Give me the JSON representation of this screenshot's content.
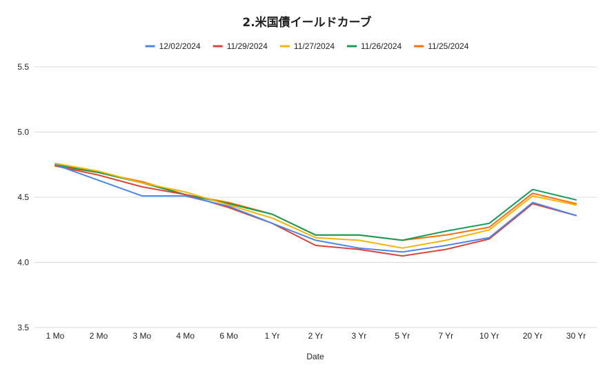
{
  "chart_data": {
    "type": "line",
    "title": "2.米国債イールドカーブ",
    "xlabel": "Date",
    "ylabel": "",
    "categories": [
      "1 Mo",
      "2 Mo",
      "3 Mo",
      "4 Mo",
      "6 Mo",
      "1 Yr",
      "2 Yr",
      "3 Yr",
      "5 Yr",
      "7 Yr",
      "10 Yr",
      "20 Yr",
      "30 Yr"
    ],
    "ylim": [
      3.5,
      5.5
    ],
    "yticks": [
      "3.5",
      "4.0",
      "4.5",
      "5.0",
      "5.5"
    ],
    "grid": true,
    "legend_position": "top",
    "series": [
      {
        "name": "12/02/2024",
        "color": "#4a86e8",
        "values": [
          4.75,
          4.63,
          4.51,
          4.51,
          4.43,
          4.3,
          4.17,
          4.11,
          4.08,
          4.13,
          4.19,
          4.46,
          4.36
        ]
      },
      {
        "name": "11/29/2024",
        "color": "#db4437",
        "values": [
          4.74,
          4.67,
          4.58,
          4.52,
          4.42,
          4.3,
          4.13,
          4.1,
          4.05,
          4.1,
          4.18,
          4.45,
          4.36
        ]
      },
      {
        "name": "11/27/2024",
        "color": "#f4b400",
        "values": [
          4.76,
          4.7,
          4.61,
          4.54,
          4.44,
          4.34,
          4.19,
          4.17,
          4.11,
          4.17,
          4.25,
          4.51,
          4.44
        ]
      },
      {
        "name": "11/26/2024",
        "color": "#0f9d58",
        "values": [
          4.75,
          4.69,
          4.61,
          4.52,
          4.45,
          4.37,
          4.21,
          4.21,
          4.17,
          4.24,
          4.3,
          4.56,
          4.48
        ]
      },
      {
        "name": "11/25/2024",
        "color": "#ff6d01",
        "values": [
          4.74,
          4.69,
          4.62,
          4.52,
          4.46,
          4.37,
          4.21,
          4.21,
          4.17,
          4.21,
          4.27,
          4.53,
          4.45
        ]
      }
    ]
  }
}
